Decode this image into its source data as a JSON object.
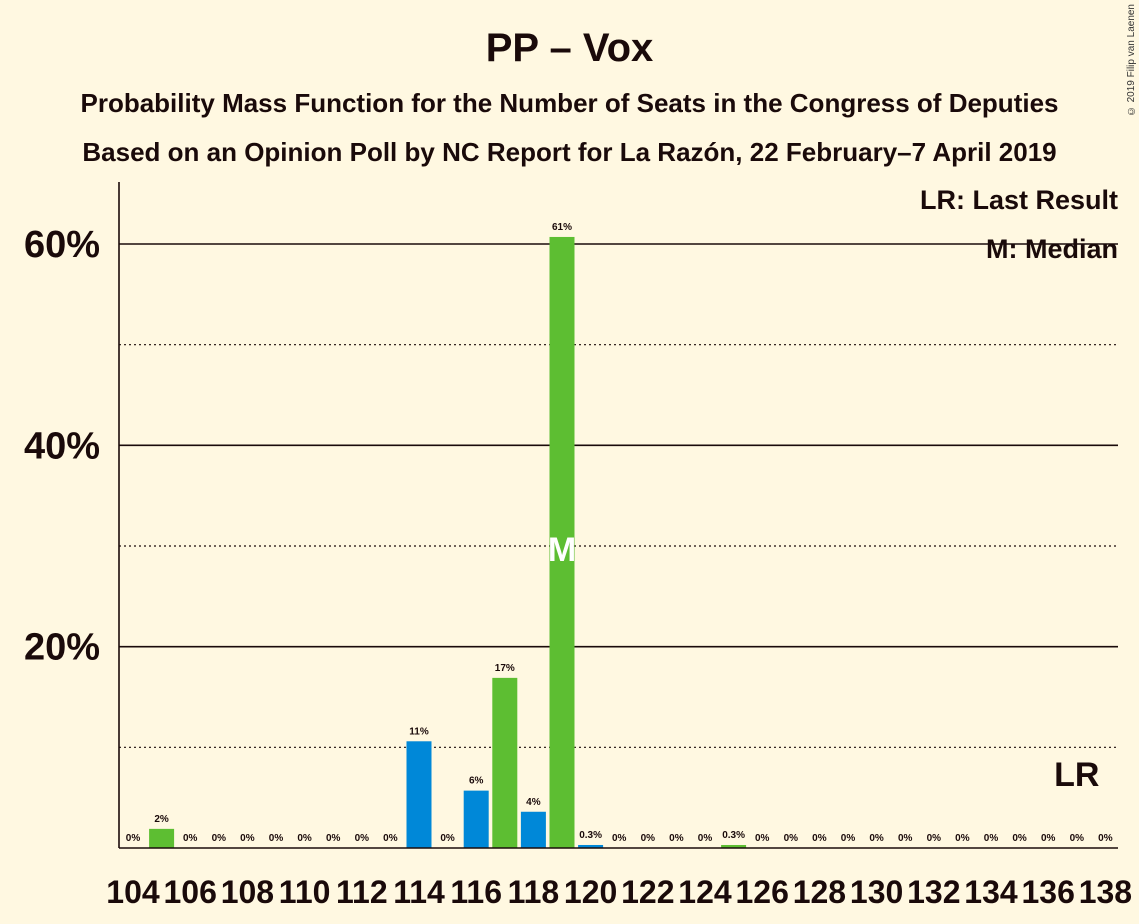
{
  "title": "PP – Vox",
  "subtitle1": "Probability Mass Function for the Number of Seats in the Congress of Deputies",
  "subtitle2": "Based on an Opinion Poll by NC Report for La Razón, 22 February–7 April 2019",
  "copyright": "© 2019 Filip van Laenen",
  "legend": {
    "last_result": "LR: Last Result",
    "median": "M: Median"
  },
  "markers": {
    "median_symbol": "M",
    "last_result_symbol": "LR",
    "median_seat": 119,
    "last_result_seat": 137
  },
  "colors": {
    "pp": "#0088d8",
    "vox": "#5dbe32",
    "background": "#fff8e1",
    "text": "#1a0a0a"
  },
  "chart_data": {
    "type": "bar",
    "ylim": [
      0,
      66
    ],
    "y_ticks_labeled": [
      "20%",
      "40%",
      "60%"
    ],
    "y_tick_values": [
      20,
      40,
      60
    ],
    "y_minor_gridlines": [
      10,
      30,
      50
    ],
    "x_tick_labels": [
      "104",
      "106",
      "108",
      "110",
      "112",
      "114",
      "116",
      "118",
      "120",
      "122",
      "124",
      "126",
      "128",
      "130",
      "132",
      "134",
      "136",
      "138"
    ],
    "bars": [
      {
        "seats": 104,
        "value": 0,
        "label": "0%",
        "party": "pp"
      },
      {
        "seats": 105,
        "value": 1.9,
        "label": "2%",
        "party": "vox"
      },
      {
        "seats": 106,
        "value": 0,
        "label": "0%",
        "party": "pp"
      },
      {
        "seats": 107,
        "value": 0,
        "label": "0%",
        "party": "vox"
      },
      {
        "seats": 108,
        "value": 0,
        "label": "0%",
        "party": "pp"
      },
      {
        "seats": 109,
        "value": 0,
        "label": "0%",
        "party": "vox"
      },
      {
        "seats": 110,
        "value": 0,
        "label": "0%",
        "party": "pp"
      },
      {
        "seats": 111,
        "value": 0,
        "label": "0%",
        "party": "vox"
      },
      {
        "seats": 112,
        "value": 0,
        "label": "0%",
        "party": "pp"
      },
      {
        "seats": 113,
        "value": 0,
        "label": "0%",
        "party": "vox"
      },
      {
        "seats": 114,
        "value": 10.6,
        "label": "11%",
        "party": "pp"
      },
      {
        "seats": 115,
        "value": 0,
        "label": "0%",
        "party": "vox"
      },
      {
        "seats": 116,
        "value": 5.7,
        "label": "6%",
        "party": "pp"
      },
      {
        "seats": 117,
        "value": 16.9,
        "label": "17%",
        "party": "vox"
      },
      {
        "seats": 118,
        "value": 3.6,
        "label": "4%",
        "party": "pp"
      },
      {
        "seats": 119,
        "value": 60.7,
        "label": "61%",
        "party": "vox"
      },
      {
        "seats": 120,
        "value": 0.3,
        "label": "0.3%",
        "party": "pp"
      },
      {
        "seats": 121,
        "value": 0,
        "label": "0%",
        "party": "vox"
      },
      {
        "seats": 122,
        "value": 0,
        "label": "0%",
        "party": "pp"
      },
      {
        "seats": 123,
        "value": 0,
        "label": "0%",
        "party": "vox"
      },
      {
        "seats": 124,
        "value": 0,
        "label": "0%",
        "party": "pp"
      },
      {
        "seats": 125,
        "value": 0.3,
        "label": "0.3%",
        "party": "vox"
      },
      {
        "seats": 126,
        "value": 0,
        "label": "0%",
        "party": "pp"
      },
      {
        "seats": 127,
        "value": 0,
        "label": "0%",
        "party": "vox"
      },
      {
        "seats": 128,
        "value": 0,
        "label": "0%",
        "party": "pp"
      },
      {
        "seats": 129,
        "value": 0,
        "label": "0%",
        "party": "vox"
      },
      {
        "seats": 130,
        "value": 0,
        "label": "0%",
        "party": "pp"
      },
      {
        "seats": 131,
        "value": 0,
        "label": "0%",
        "party": "vox"
      },
      {
        "seats": 132,
        "value": 0,
        "label": "0%",
        "party": "pp"
      },
      {
        "seats": 133,
        "value": 0,
        "label": "0%",
        "party": "vox"
      },
      {
        "seats": 134,
        "value": 0,
        "label": "0%",
        "party": "pp"
      },
      {
        "seats": 135,
        "value": 0,
        "label": "0%",
        "party": "vox"
      },
      {
        "seats": 136,
        "value": 0,
        "label": "0%",
        "party": "pp"
      },
      {
        "seats": 137,
        "value": 0,
        "label": "0%",
        "party": "vox"
      },
      {
        "seats": 138,
        "value": 0,
        "label": "0%",
        "party": "pp"
      }
    ]
  }
}
